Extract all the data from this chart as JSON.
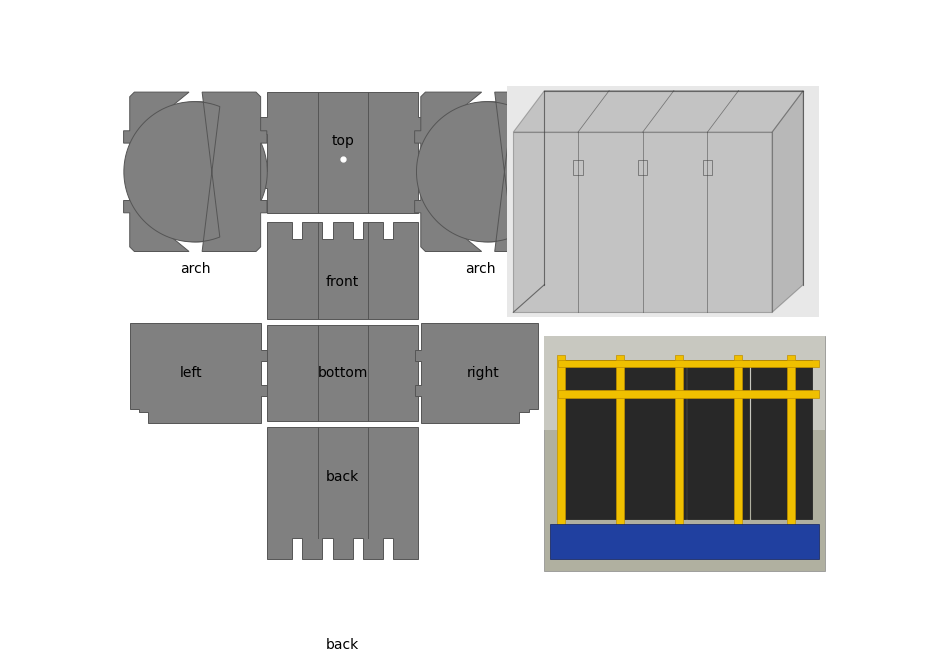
{
  "bg_color": "#ffffff",
  "gray": "#808080",
  "label_fontsize": 10,
  "labels": {
    "top": "top",
    "arch_left": "arch",
    "arch_right": "arch",
    "front": "front",
    "bottom": "bottom",
    "left": "left",
    "right": "right",
    "back": "back"
  }
}
